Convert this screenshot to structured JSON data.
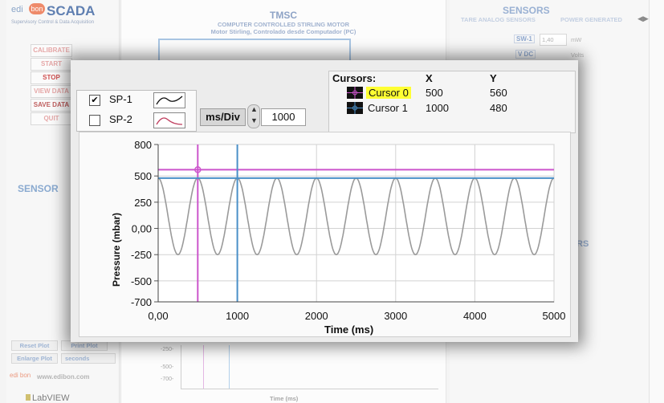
{
  "background": {
    "logo": {
      "edi": "edi",
      "bon": "bon",
      "scada": "SCADA",
      "subtitle": "Supervisory Control & Data Acquisition"
    },
    "left_buttons": [
      "CALIBRATE",
      "START",
      "STOP",
      "VIEW DATA",
      "SAVE DATA",
      "QUIT"
    ],
    "sensors_left": "SENSOR",
    "plot_buttons": {
      "reset": "Reset Plot",
      "print": "Print Plot",
      "enlarge": "Enlarge Plot",
      "seconds": "seconds"
    },
    "website": "www.edibon.com",
    "website_bon": "edi bon",
    "labview": "LabVIEW",
    "center": {
      "title": "TMSC",
      "subtitle1": "COMPUTER CONTROLLED STIRLING MOTOR",
      "subtitle2": "Motor Stirling, Controlado desde Computador (PC)"
    },
    "right": {
      "title": "SENSORS",
      "tabs": [
        "TARE ANALOG SENSORS",
        "POWER GENERATED"
      ],
      "sw_label": "SW-1",
      "sw_value": "1,40",
      "sw_unit": "mW",
      "volts": "Volts",
      "vdc": "V DC",
      "rs": "RS"
    },
    "bg_y_ticks": [
      "-250-",
      "-500-",
      "-700-"
    ],
    "bg_time_label": "Time (ms)"
  },
  "popup": {
    "legend": [
      {
        "label": "SP-1",
        "checked": true,
        "checkmark": "✔",
        "color": "#111111"
      },
      {
        "label": "SP-2",
        "checked": false,
        "checkmark": "",
        "color": "#c04060"
      }
    ],
    "ms_div": {
      "label": "ms/Div",
      "value": "1000"
    },
    "cursors": {
      "header": {
        "name": "Cursors:",
        "x": "X",
        "y": "Y"
      },
      "rows": [
        {
          "name": "Cursor 0",
          "x": "500",
          "y": "560",
          "color": "#cc55cc"
        },
        {
          "name": "Cursor 1",
          "x": "1000",
          "y": "480",
          "color": "#4a90c8"
        }
      ]
    }
  },
  "chart_data": {
    "type": "line",
    "xlabel": "Time (ms)",
    "ylabel": "Pressure (mbar)",
    "xlim": [
      0,
      5000
    ],
    "ylim": [
      -700,
      800
    ],
    "x_ticks": [
      "0,00",
      "1000",
      "2000",
      "3000",
      "4000",
      "5000"
    ],
    "y_ticks": [
      {
        "value": 800,
        "label": "800"
      },
      {
        "value": 500,
        "label": "500"
      },
      {
        "value": 250,
        "label": "250"
      },
      {
        "value": 0,
        "label": "0,00"
      },
      {
        "value": -250,
        "label": "-250"
      },
      {
        "value": -500,
        "label": "-500"
      },
      {
        "value": -700,
        "label": "-700"
      }
    ],
    "grid": true,
    "series": [
      {
        "name": "SP-1",
        "color": "#9a9a9a",
        "period_ms": 500,
        "amplitude_max": 480,
        "amplitude_min": -250
      }
    ],
    "cursors": [
      {
        "name": "Cursor 0",
        "x": 500,
        "y": 560,
        "color": "#cc55cc"
      },
      {
        "name": "Cursor 1",
        "x": 1000,
        "y": 480,
        "color": "#4a90c8"
      }
    ]
  }
}
